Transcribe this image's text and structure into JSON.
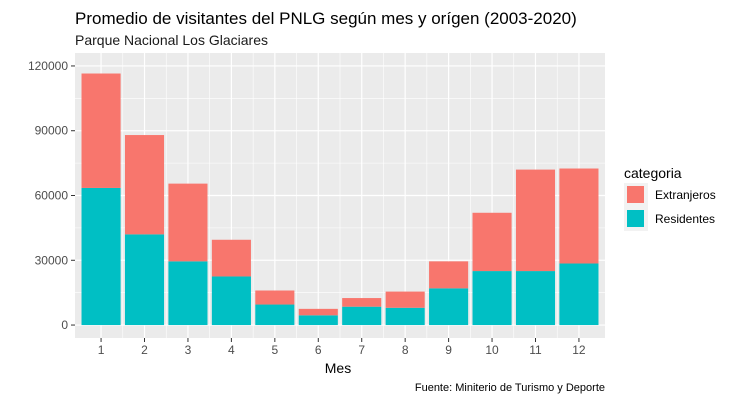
{
  "chart_data": {
    "type": "bar",
    "stacked": true,
    "title": "Promedio de visitantes del PNLG según mes y orígen (2003-2020)",
    "subtitle": "Parque Nacional Los Glaciares",
    "xlabel": "Mes",
    "ylabel": "",
    "caption": "Fuente: Miniterio de Turismo y Deporte",
    "categories": [
      "1",
      "2",
      "3",
      "4",
      "5",
      "6",
      "7",
      "8",
      "9",
      "10",
      "11",
      "12"
    ],
    "series": [
      {
        "name": "Residentes",
        "color": "#00BFC4",
        "values": [
          63500,
          42000,
          29500,
          22500,
          9500,
          4500,
          8500,
          8000,
          17000,
          25000,
          25000,
          28500
        ]
      },
      {
        "name": "Extranjeros",
        "color": "#F8766D",
        "values": [
          53000,
          46000,
          36000,
          17000,
          6500,
          3000,
          4000,
          7500,
          12500,
          27000,
          47000,
          44000
        ]
      }
    ],
    "ylim": [
      -6000,
      126000
    ],
    "yticks": [
      0,
      30000,
      60000,
      90000,
      120000
    ],
    "ytick_labels": [
      "0",
      "30000",
      "60000",
      "90000",
      "120000"
    ],
    "legend": {
      "title": "categoria",
      "position": "right",
      "entries": [
        {
          "label": "Extranjeros",
          "color": "#F8766D"
        },
        {
          "label": "Residentes",
          "color": "#00BFC4"
        }
      ]
    },
    "panel_background": "#EBEBEB",
    "grid_color": "#FFFFFF",
    "grid": true
  }
}
